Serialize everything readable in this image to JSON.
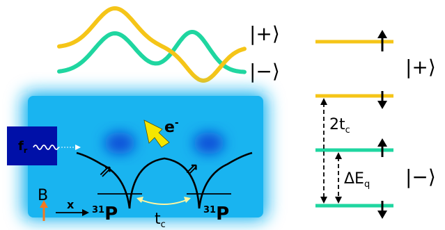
{
  "wavefunctions": {
    "plus_label": "|+⟩",
    "minus_label": "|−⟩",
    "plus_color": "#F5C518",
    "minus_color": "#1FD6A0"
  },
  "device": {
    "background_color": "#19B4F0",
    "dot_color": "#0A50D8",
    "resonator_color": "#0010A8",
    "resonator_label_main": "f",
    "resonator_label_sub": "r",
    "electron_label_main": "e",
    "electron_label_sup": "-",
    "electron_arrow_color": "#F5E600",
    "field_label": "B",
    "field_color": "#F47920",
    "axis_label": "x",
    "donor_label_left_sup": "31",
    "donor_label_left_main": "P",
    "donor_label_right_sup": "31",
    "donor_label_right_main": "P",
    "tunnel_label_main": "t",
    "tunnel_label_sub": "c",
    "tunnel_color": "#FFF6A0",
    "spin_arrow_glyph": "⇒"
  },
  "energy_levels": {
    "plus_group_label": "|+⟩",
    "minus_group_label": "|−⟩",
    "gap_tunnel_label_prefix": "2t",
    "gap_tunnel_label_sub": "c",
    "gap_energy_label_prefix": "ΔE",
    "gap_energy_label_sub": "q",
    "levels": [
      {
        "state": "plus",
        "spin": "up"
      },
      {
        "state": "plus",
        "spin": "down"
      },
      {
        "state": "minus",
        "spin": "up"
      },
      {
        "state": "minus",
        "spin": "down"
      }
    ]
  }
}
